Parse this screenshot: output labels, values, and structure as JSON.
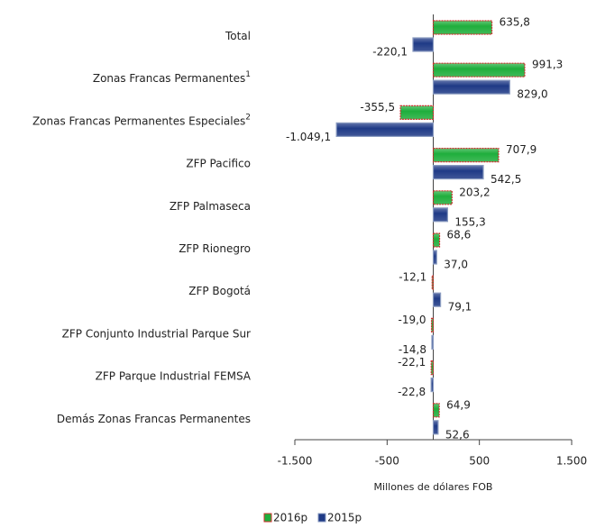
{
  "chart_data": {
    "type": "hbar",
    "categories": [
      "Total",
      "Zonas Francas Permanentes",
      "Zonas Francas Permanentes Especiales",
      "ZFP Pacifico",
      "ZFP Palmaseca",
      "ZFP Rionegro",
      "ZFP Bogotá",
      "ZFP Conjunto Industrial Parque Sur",
      "ZFP Parque Industrial FEMSA",
      "Demás Zonas Francas Permanentes"
    ],
    "category_notes": [
      null,
      "1",
      "2",
      null,
      null,
      null,
      null,
      null,
      null,
      null
    ],
    "series": [
      {
        "name": "2016p",
        "color": "#1fae3c",
        "border": "#d03030",
        "values": [
          635.8,
          991.3,
          -355.5,
          707.9,
          203.2,
          68.6,
          -12.1,
          -19.0,
          -22.1,
          64.9
        ],
        "value_labels": [
          "635,8",
          "991,3",
          "-355,5",
          "707,9",
          "203,2",
          "68,6",
          "-12,1",
          "-19,0",
          "-22,1",
          "64,9"
        ]
      },
      {
        "name": "2015p",
        "color": "#1f3a86",
        "border": "#8a9bc0",
        "values": [
          -220.1,
          829.0,
          -1049.1,
          542.5,
          155.3,
          37.0,
          79.1,
          -14.8,
          -22.8,
          52.6
        ],
        "value_labels": [
          "-220,1",
          "829,0",
          "-1.049,1",
          "542,5",
          "155,3",
          "37,0",
          "79,1",
          "-14,8",
          "-22,8",
          "52,6"
        ]
      }
    ],
    "xlim": [
      -1500,
      1500
    ],
    "xticks": [
      {
        "value": -1500,
        "label": "-1.500"
      },
      -500,
      500,
      {
        "value": 1500,
        "label": "1.500"
      }
    ],
    "xlabel": "Millones de dólares FOB",
    "legend": "bottom"
  }
}
